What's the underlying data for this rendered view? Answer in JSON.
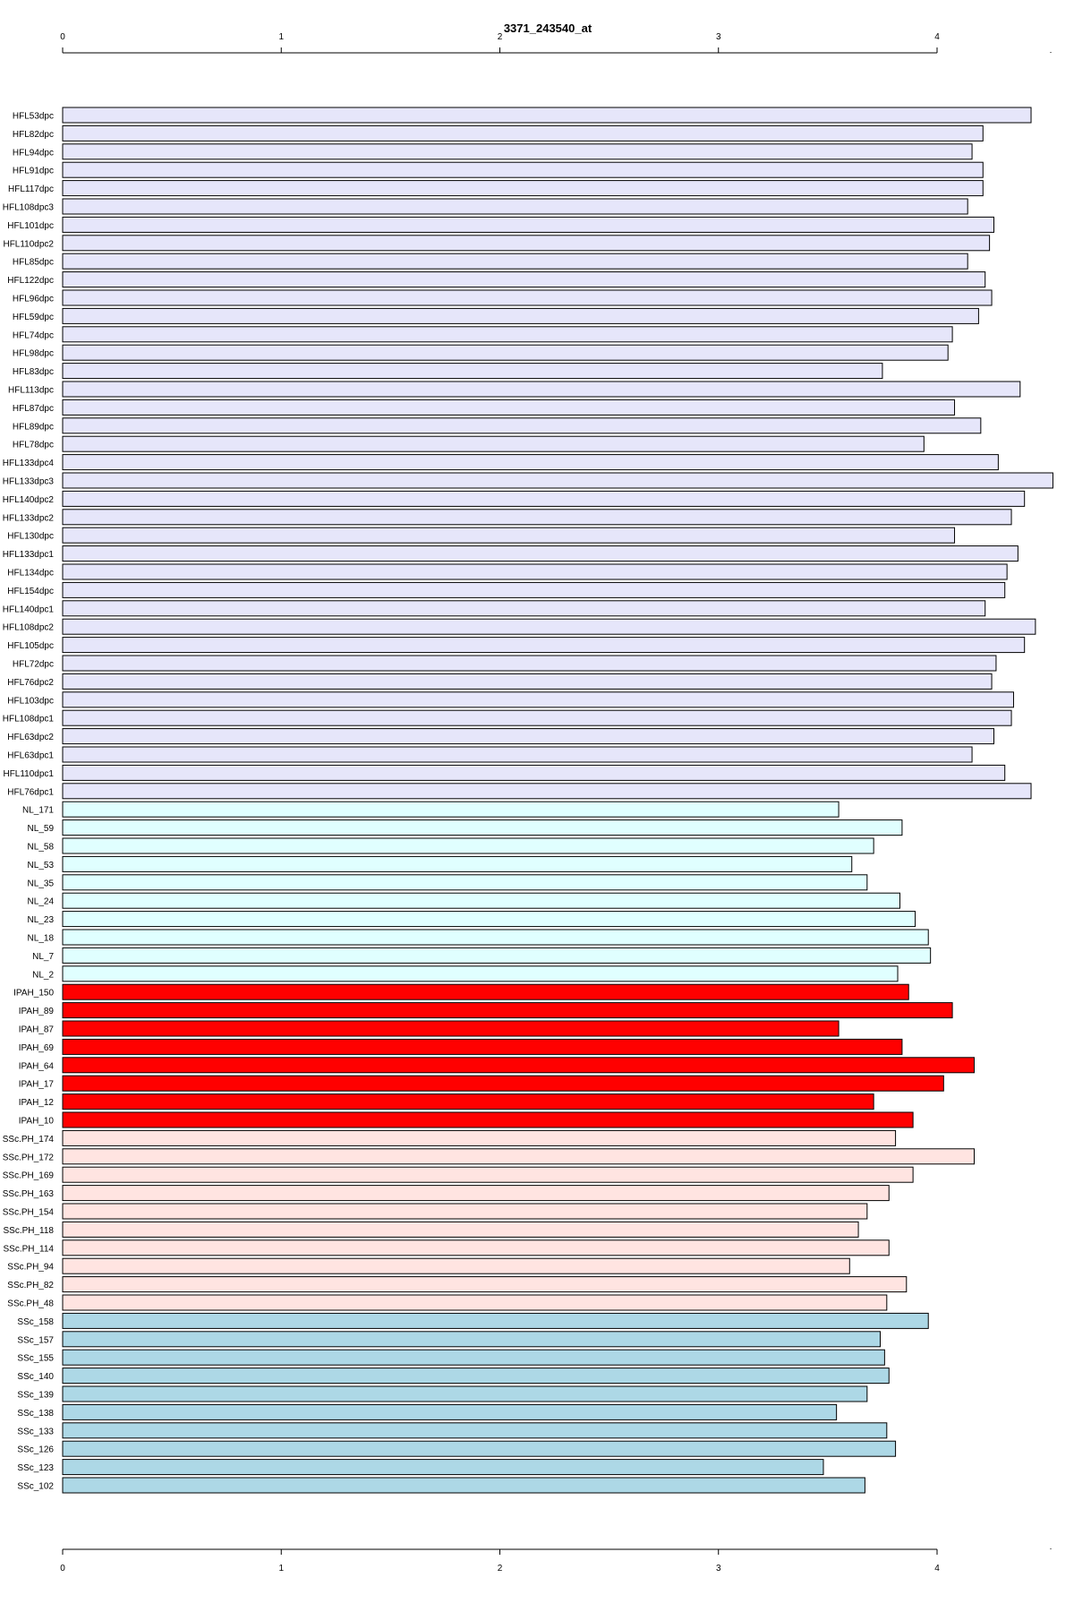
{
  "chart_data": {
    "type": "bar",
    "orientation": "horizontal",
    "title": "3371_243540_at",
    "xlabel": "",
    "ylabel": "",
    "xlim": [
      0,
      4.52
    ],
    "x_ticks": [
      0,
      1,
      2,
      3,
      4
    ],
    "x_tick_labels": [
      "0",
      "1",
      "2",
      "3",
      "4"
    ],
    "grid": false,
    "legend": "none",
    "group_colors": {
      "HFL": "#e6e6fa",
      "NL": "#e0ffff",
      "IPAH": "#ff0000",
      "SScPH": "#ffe4e1",
      "SSc": "#add8e6"
    },
    "categories": [
      "HFL53dpc",
      "HFL82dpc",
      "HFL94dpc",
      "HFL91dpc",
      "HFL117dpc",
      "HFL108dpc3",
      "HFL101dpc",
      "HFL110dpc2",
      "HFL85dpc",
      "HFL122dpc",
      "HFL96dpc",
      "HFL59dpc",
      "HFL74dpc",
      "HFL98dpc",
      "HFL83dpc",
      "HFL113dpc",
      "HFL87dpc",
      "HFL89dpc",
      "HFL78dpc",
      "HFL133dpc4",
      "HFL133dpc3",
      "HFL140dpc2",
      "HFL133dpc2",
      "HFL130dpc",
      "HFL133dpc1",
      "HFL134dpc",
      "HFL154dpc",
      "HFL140dpc1",
      "HFL108dpc2",
      "HFL105dpc",
      "HFL72dpc",
      "HFL76dpc2",
      "HFL103dpc",
      "HFL108dpc1",
      "HFL63dpc2",
      "HFL63dpc1",
      "HFL110dpc1",
      "HFL76dpc1",
      "NL_171",
      "NL_59",
      "NL_58",
      "NL_53",
      "NL_35",
      "NL_24",
      "NL_23",
      "NL_18",
      "NL_7",
      "NL_2",
      "IPAH_150",
      "IPAH_89",
      "IPAH_87",
      "IPAH_69",
      "IPAH_64",
      "IPAH_17",
      "IPAH_12",
      "IPAH_10",
      "SSc.PH_174",
      "SSc.PH_172",
      "SSc.PH_169",
      "SSc.PH_163",
      "SSc.PH_154",
      "SSc.PH_118",
      "SSc.PH_114",
      "SSc.PH_94",
      "SSc.PH_82",
      "SSc.PH_48",
      "SSc_158",
      "SSc_157",
      "SSc_155",
      "SSc_140",
      "SSc_139",
      "SSc_138",
      "SSc_133",
      "SSc_126",
      "SSc_123",
      "SSc_102"
    ],
    "groups": [
      "HFL",
      "HFL",
      "HFL",
      "HFL",
      "HFL",
      "HFL",
      "HFL",
      "HFL",
      "HFL",
      "HFL",
      "HFL",
      "HFL",
      "HFL",
      "HFL",
      "HFL",
      "HFL",
      "HFL",
      "HFL",
      "HFL",
      "HFL",
      "HFL",
      "HFL",
      "HFL",
      "HFL",
      "HFL",
      "HFL",
      "HFL",
      "HFL",
      "HFL",
      "HFL",
      "HFL",
      "HFL",
      "HFL",
      "HFL",
      "HFL",
      "HFL",
      "HFL",
      "HFL",
      "NL",
      "NL",
      "NL",
      "NL",
      "NL",
      "NL",
      "NL",
      "NL",
      "NL",
      "NL",
      "IPAH",
      "IPAH",
      "IPAH",
      "IPAH",
      "IPAH",
      "IPAH",
      "IPAH",
      "IPAH",
      "SScPH",
      "SScPH",
      "SScPH",
      "SScPH",
      "SScPH",
      "SScPH",
      "SScPH",
      "SScPH",
      "SScPH",
      "SScPH",
      "SSc",
      "SSc",
      "SSc",
      "SSc",
      "SSc",
      "SSc",
      "SSc",
      "SSc",
      "SSc",
      "SSc"
    ],
    "values": [
      4.43,
      4.21,
      4.16,
      4.21,
      4.21,
      4.14,
      4.26,
      4.24,
      4.14,
      4.22,
      4.25,
      4.19,
      4.07,
      4.05,
      3.75,
      4.38,
      4.08,
      4.2,
      3.94,
      4.28,
      4.53,
      4.4,
      4.34,
      4.08,
      4.37,
      4.32,
      4.31,
      4.22,
      4.45,
      4.4,
      4.27,
      4.25,
      4.35,
      4.34,
      4.26,
      4.16,
      4.31,
      4.43,
      3.55,
      3.84,
      3.71,
      3.61,
      3.68,
      3.83,
      3.9,
      3.96,
      3.97,
      3.82,
      3.87,
      4.07,
      3.55,
      3.84,
      4.17,
      4.03,
      3.71,
      3.89,
      3.81,
      4.17,
      3.89,
      3.78,
      3.68,
      3.64,
      3.78,
      3.6,
      3.86,
      3.77,
      3.96,
      3.74,
      3.76,
      3.78,
      3.68,
      3.54,
      3.77,
      3.81,
      3.48,
      3.67
    ]
  }
}
